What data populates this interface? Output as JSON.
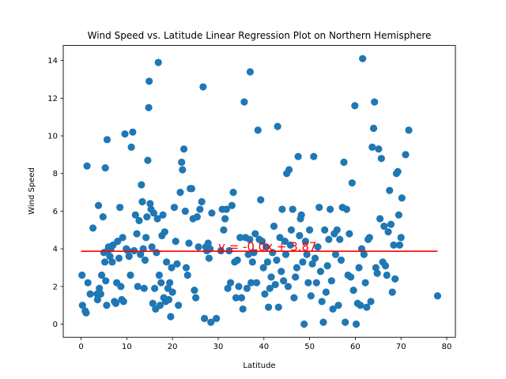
{
  "chart_data": {
    "type": "scatter",
    "title": "Wind Speed vs. Latitude Linear Regression Plot on Northern Hemisphere",
    "xlabel": "Latitude",
    "ylabel": "Wind Speed",
    "xlim": [
      -3.9,
      81.9
    ],
    "ylim": [
      -0.7,
      14.8
    ],
    "xticks": [
      0,
      10,
      20,
      30,
      40,
      50,
      60,
      70,
      80
    ],
    "yticks": [
      0,
      2,
      4,
      6,
      8,
      10,
      12,
      14
    ],
    "grid": false,
    "colors": {
      "points": "#1f77b4",
      "regression": "#ff0000",
      "annotation": "#ff0000"
    },
    "regression": {
      "slope": -0.0,
      "intercept": 3.87,
      "x_range": [
        0.0,
        78.0
      ]
    },
    "annotation": {
      "text": "y = -0.0x + 3.87",
      "x": 30,
      "y": 3.9
    },
    "series": [
      {
        "points": [
          [
            0.2,
            2.6
          ],
          [
            0.3,
            1.0
          ],
          [
            0.9,
            0.7
          ],
          [
            1.1,
            0.6
          ],
          [
            1.3,
            8.4
          ],
          [
            1.5,
            2.2
          ],
          [
            2.0,
            1.6
          ],
          [
            2.6,
            5.1
          ],
          [
            3.5,
            1.6
          ],
          [
            3.6,
            1.3
          ],
          [
            3.8,
            6.3
          ],
          [
            4.0,
            1.9
          ],
          [
            4.3,
            1.6
          ],
          [
            4.5,
            2.6
          ],
          [
            4.8,
            5.7
          ],
          [
            5.0,
            3.8
          ],
          [
            5.2,
            3.3
          ],
          [
            5.3,
            8.3
          ],
          [
            5.4,
            2.3
          ],
          [
            5.6,
            1.0
          ],
          [
            5.7,
            9.8
          ],
          [
            5.8,
            3.9
          ],
          [
            6.0,
            4.1
          ],
          [
            6.3,
            3.6
          ],
          [
            6.5,
            4.0
          ],
          [
            6.8,
            3.3
          ],
          [
            7.0,
            4.2
          ],
          [
            7.3,
            1.2
          ],
          [
            7.6,
            1.1
          ],
          [
            7.8,
            2.2
          ],
          [
            8.0,
            4.4
          ],
          [
            8.3,
            3.5
          ],
          [
            8.5,
            6.2
          ],
          [
            8.7,
            2.0
          ],
          [
            8.9,
            1.3
          ],
          [
            9.1,
            4.6
          ],
          [
            9.3,
            1.2
          ],
          [
            9.6,
            10.1
          ],
          [
            9.9,
            4.0
          ],
          [
            10.2,
            3.9
          ],
          [
            10.5,
            3.6
          ],
          [
            10.8,
            2.6
          ],
          [
            11.0,
            9.4
          ],
          [
            11.3,
            10.2
          ],
          [
            11.6,
            3.9
          ],
          [
            11.9,
            5.8
          ],
          [
            12.2,
            4.8
          ],
          [
            12.4,
            2.0
          ],
          [
            12.7,
            5.5
          ],
          [
            13.0,
            3.7
          ],
          [
            13.2,
            7.4
          ],
          [
            13.4,
            6.5
          ],
          [
            13.6,
            4.0
          ],
          [
            13.8,
            1.9
          ],
          [
            14.0,
            3.4
          ],
          [
            14.2,
            4.6
          ],
          [
            14.4,
            5.7
          ],
          [
            14.6,
            8.7
          ],
          [
            14.8,
            11.5
          ],
          [
            14.9,
            12.9
          ],
          [
            15.1,
            6.4
          ],
          [
            15.3,
            6.1
          ],
          [
            15.5,
            4.1
          ],
          [
            15.7,
            1.1
          ],
          [
            15.9,
            5.9
          ],
          [
            16.1,
            1.9
          ],
          [
            16.3,
            0.8
          ],
          [
            16.5,
            3.8
          ],
          [
            16.7,
            5.6
          ],
          [
            16.9,
            13.9
          ],
          [
            17.1,
            2.6
          ],
          [
            17.3,
            1.0
          ],
          [
            17.5,
            2.2
          ],
          [
            17.7,
            4.7
          ],
          [
            17.9,
            5.8
          ],
          [
            18.1,
            1.4
          ],
          [
            18.3,
            4.9
          ],
          [
            18.5,
            1.2
          ],
          [
            18.7,
            3.3
          ],
          [
            19.0,
            1.9
          ],
          [
            19.2,
            1.3
          ],
          [
            19.4,
            2.2
          ],
          [
            19.6,
            0.4
          ],
          [
            19.8,
            3.0
          ],
          [
            20.0,
            1.7
          ],
          [
            20.4,
            6.2
          ],
          [
            20.7,
            4.4
          ],
          [
            21.0,
            3.2
          ],
          [
            21.3,
            1.0
          ],
          [
            21.7,
            7.0
          ],
          [
            22.0,
            8.6
          ],
          [
            22.2,
            8.2
          ],
          [
            22.5,
            9.3
          ],
          [
            22.8,
            6.0
          ],
          [
            23.0,
            3.0
          ],
          [
            23.3,
            2.6
          ],
          [
            23.6,
            4.3
          ],
          [
            23.9,
            7.2
          ],
          [
            24.2,
            7.2
          ],
          [
            24.5,
            5.6
          ],
          [
            24.8,
            1.8
          ],
          [
            25.1,
            1.4
          ],
          [
            25.4,
            5.7
          ],
          [
            25.7,
            4.1
          ],
          [
            26.0,
            6.1
          ],
          [
            26.4,
            6.5
          ],
          [
            26.7,
            12.6
          ],
          [
            27.0,
            0.3
          ],
          [
            27.3,
            4.1
          ],
          [
            27.5,
            3.9
          ],
          [
            27.8,
            4.3
          ],
          [
            28.0,
            3.5
          ],
          [
            28.2,
            4.0
          ],
          [
            28.4,
            0.1
          ],
          [
            28.6,
            5.9
          ],
          [
            29.6,
            0.3
          ],
          [
            30.6,
            3.9
          ],
          [
            30.9,
            6.1
          ],
          [
            31.2,
            5.0
          ],
          [
            31.5,
            5.6
          ],
          [
            31.8,
            6.1
          ],
          [
            32.1,
            1.9
          ],
          [
            32.4,
            3.9
          ],
          [
            32.7,
            2.2
          ],
          [
            33.0,
            6.3
          ],
          [
            33.3,
            7.0
          ],
          [
            33.6,
            3.3
          ],
          [
            33.9,
            1.4
          ],
          [
            34.2,
            3.4
          ],
          [
            34.5,
            2.0
          ],
          [
            34.8,
            4.6
          ],
          [
            35.1,
            1.4
          ],
          [
            35.4,
            0.8
          ],
          [
            35.7,
            11.8
          ],
          [
            36.0,
            4.6
          ],
          [
            36.3,
            1.9
          ],
          [
            36.6,
            3.7
          ],
          [
            36.9,
            4.5
          ],
          [
            37.0,
            13.4
          ],
          [
            37.2,
            2.2
          ],
          [
            37.5,
            3.3
          ],
          [
            37.8,
            3.8
          ],
          [
            38.1,
            4.8
          ],
          [
            38.4,
            2.2
          ],
          [
            38.7,
            10.3
          ],
          [
            39.0,
            4.5
          ],
          [
            39.3,
            6.6
          ],
          [
            39.6,
            4.4
          ],
          [
            39.9,
            3.0
          ],
          [
            40.2,
            1.6
          ],
          [
            40.5,
            4.1
          ],
          [
            40.8,
            3.3
          ],
          [
            41.0,
            0.9
          ],
          [
            41.3,
            1.9
          ],
          [
            41.6,
            2.5
          ],
          [
            41.9,
            3.8
          ],
          [
            42.2,
            5.2
          ],
          [
            42.5,
            2.1
          ],
          [
            42.8,
            3.4
          ],
          [
            43.0,
            10.5
          ],
          [
            43.2,
            0.9
          ],
          [
            43.5,
            4.6
          ],
          [
            43.8,
            2.8
          ],
          [
            44.0,
            6.1
          ],
          [
            44.3,
            2.3
          ],
          [
            44.6,
            4.4
          ],
          [
            44.8,
            3.7
          ],
          [
            45.0,
            8.0
          ],
          [
            45.3,
            2.0
          ],
          [
            45.5,
            8.2
          ],
          [
            45.8,
            4.2
          ],
          [
            46.0,
            5.0
          ],
          [
            46.3,
            6.1
          ],
          [
            46.6,
            1.4
          ],
          [
            46.9,
            2.5
          ],
          [
            47.2,
            3.0
          ],
          [
            47.5,
            8.9
          ],
          [
            47.8,
            4.7
          ],
          [
            48.0,
            5.6
          ],
          [
            48.2,
            5.8
          ],
          [
            48.5,
            3.3
          ],
          [
            48.8,
            0.0
          ],
          [
            49.1,
            4.4
          ],
          [
            49.4,
            3.7
          ],
          [
            49.7,
            2.2
          ],
          [
            50.0,
            5.0
          ],
          [
            50.3,
            1.5
          ],
          [
            50.6,
            3.2
          ],
          [
            50.9,
            8.9
          ],
          [
            51.2,
            3.5
          ],
          [
            51.5,
            2.2
          ],
          [
            51.8,
            4.1
          ],
          [
            52.1,
            6.2
          ],
          [
            52.4,
            2.8
          ],
          [
            52.7,
            1.2
          ],
          [
            53.0,
            0.1
          ],
          [
            53.3,
            5.0
          ],
          [
            53.6,
            1.7
          ],
          [
            53.9,
            3.1
          ],
          [
            54.2,
            4.5
          ],
          [
            54.5,
            6.1
          ],
          [
            54.8,
            2.3
          ],
          [
            55.1,
            0.8
          ],
          [
            55.4,
            4.8
          ],
          [
            55.7,
            3.7
          ],
          [
            56.0,
            5.0
          ],
          [
            56.3,
            1.0
          ],
          [
            56.6,
            4.5
          ],
          [
            56.9,
            3.4
          ],
          [
            57.2,
            6.2
          ],
          [
            57.5,
            8.6
          ],
          [
            57.8,
            0.1
          ],
          [
            58.1,
            6.1
          ],
          [
            58.4,
            2.6
          ],
          [
            58.7,
            4.8
          ],
          [
            59.0,
            2.5
          ],
          [
            59.3,
            7.5
          ],
          [
            59.6,
            1.8
          ],
          [
            59.9,
            11.6
          ],
          [
            60.2,
            0.0
          ],
          [
            60.5,
            1.1
          ],
          [
            60.8,
            3.0
          ],
          [
            61.1,
            1.0
          ],
          [
            61.4,
            4.0
          ],
          [
            61.6,
            14.1
          ],
          [
            61.9,
            3.7
          ],
          [
            62.2,
            2.2
          ],
          [
            62.5,
            0.9
          ],
          [
            62.8,
            4.5
          ],
          [
            63.1,
            4.6
          ],
          [
            63.4,
            1.2
          ],
          [
            63.7,
            9.4
          ],
          [
            64.0,
            10.4
          ],
          [
            64.2,
            11.8
          ],
          [
            64.5,
            3.0
          ],
          [
            64.8,
            2.7
          ],
          [
            65.1,
            9.3
          ],
          [
            65.4,
            5.6
          ],
          [
            65.7,
            8.8
          ],
          [
            66.0,
            3.3
          ],
          [
            66.3,
            5.2
          ],
          [
            66.6,
            3.1
          ],
          [
            66.9,
            2.6
          ],
          [
            67.2,
            4.9
          ],
          [
            67.5,
            7.1
          ],
          [
            67.8,
            5.3
          ],
          [
            68.1,
            1.7
          ],
          [
            68.4,
            4.2
          ],
          [
            68.7,
            2.4
          ],
          [
            69.0,
            8.0
          ],
          [
            69.3,
            8.1
          ],
          [
            69.5,
            5.8
          ],
          [
            69.7,
            4.2
          ],
          [
            70.0,
            4.6
          ],
          [
            70.2,
            6.7
          ],
          [
            71.0,
            9.0
          ],
          [
            71.7,
            10.3
          ],
          [
            78.0,
            1.5
          ]
        ]
      }
    ]
  }
}
